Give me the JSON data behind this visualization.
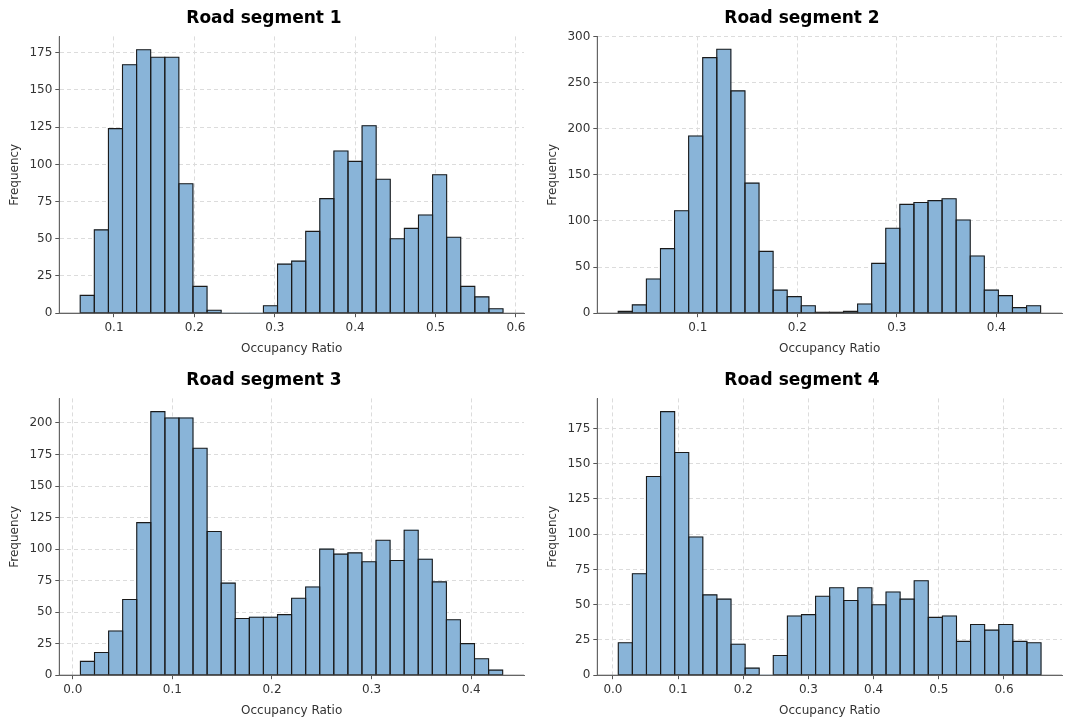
{
  "chart_data": [
    {
      "type": "histogram",
      "title": "Road segment 1",
      "xlabel": "Occupancy Ratio",
      "ylabel": "Frequency",
      "color": "#89b4d8",
      "grid": true,
      "bins": [
        0.058,
        0.0755,
        0.0931,
        0.1106,
        0.1281,
        0.1457,
        0.1632,
        0.1807,
        0.1982,
        0.2158,
        0.2333,
        0.2508,
        0.2684,
        0.2859,
        0.3034,
        0.321,
        0.3385,
        0.356,
        0.3735,
        0.3911,
        0.4086,
        0.4261,
        0.4437,
        0.4612,
        0.4787,
        0.4963,
        0.5138,
        0.5313,
        0.5488,
        0.5664,
        0.5839
      ],
      "values": [
        12,
        56,
        124,
        167,
        177,
        172,
        172,
        87,
        18,
        2,
        0,
        0,
        0,
        5,
        33,
        35,
        55,
        77,
        109,
        102,
        126,
        90,
        50,
        57,
        66,
        93,
        51,
        18,
        11,
        3
      ],
      "xlim": [
        0.032,
        0.61
      ],
      "xticks": [
        0.1,
        0.2,
        0.3,
        0.4,
        0.5,
        0.6
      ],
      "ylim": [
        0,
        186
      ],
      "yticks": [
        0,
        25,
        50,
        75,
        100,
        125,
        150,
        175
      ]
    },
    {
      "type": "histogram",
      "title": "Road segment 2",
      "xlabel": "Occupancy Ratio",
      "ylabel": "Frequency",
      "color": "#89b4d8",
      "grid": true,
      "bins": [
        0.02,
        0.0342,
        0.0483,
        0.0625,
        0.0766,
        0.0908,
        0.1049,
        0.1191,
        0.1332,
        0.1474,
        0.1615,
        0.1757,
        0.1898,
        0.204,
        0.2181,
        0.2323,
        0.2464,
        0.2606,
        0.2747,
        0.2889,
        0.303,
        0.3172,
        0.3313,
        0.3455,
        0.3596,
        0.3738,
        0.3879,
        0.4021,
        0.4162,
        0.4304,
        0.4445
      ],
      "values": [
        2,
        9,
        37,
        70,
        111,
        192,
        277,
        286,
        241,
        141,
        67,
        25,
        18,
        8,
        1,
        1,
        2,
        10,
        54,
        92,
        118,
        120,
        122,
        124,
        101,
        62,
        25,
        19,
        6,
        8
      ],
      "xlim": [
        -0.001,
        0.466
      ],
      "xticks": [
        0.1,
        0.2,
        0.3,
        0.4
      ],
      "ylim": [
        0,
        300
      ],
      "yticks": [
        0,
        50,
        100,
        150,
        200,
        250,
        300
      ]
    },
    {
      "type": "histogram",
      "title": "Road segment 3",
      "xlabel": "Occupancy Ratio",
      "ylabel": "Frequency",
      "color": "#89b4d8",
      "grid": true,
      "bins": [
        0.0077,
        0.0218,
        0.036,
        0.0501,
        0.0642,
        0.0784,
        0.0925,
        0.1066,
        0.1207,
        0.1349,
        0.149,
        0.1631,
        0.1773,
        0.1914,
        0.2055,
        0.2197,
        0.2338,
        0.2479,
        0.262,
        0.2762,
        0.2903,
        0.3044,
        0.3186,
        0.3327,
        0.3468,
        0.361,
        0.3751,
        0.3892,
        0.4033,
        0.4175,
        0.4316
      ],
      "values": [
        11,
        18,
        35,
        60,
        121,
        209,
        204,
        204,
        180,
        114,
        73,
        45,
        46,
        46,
        48,
        61,
        70,
        100,
        96,
        97,
        90,
        107,
        91,
        115,
        92,
        74,
        44,
        25,
        13,
        4
      ],
      "xlim": [
        -0.0135,
        0.453
      ],
      "xticks": [
        {
          "value": 0,
          "label": "0.0"
        },
        0.1,
        0.2,
        0.3,
        0.4
      ],
      "ylim": [
        0,
        219.5
      ],
      "yticks": [
        0,
        25,
        50,
        75,
        100,
        125,
        150,
        175,
        200
      ]
    },
    {
      "type": "histogram",
      "title": "Road segment 4",
      "xlabel": "Occupancy Ratio",
      "ylabel": "Frequency",
      "color": "#89b4d8",
      "grid": true,
      "bins": [
        0.0082,
        0.0298,
        0.0514,
        0.0731,
        0.0947,
        0.1163,
        0.1379,
        0.1595,
        0.1812,
        0.2028,
        0.2244,
        0.246,
        0.2676,
        0.2893,
        0.3109,
        0.3325,
        0.3541,
        0.3757,
        0.3974,
        0.419,
        0.4406,
        0.4622,
        0.4838,
        0.5055,
        0.5271,
        0.5487,
        0.5703,
        0.5919,
        0.6136,
        0.6352,
        0.6568
      ],
      "values": [
        23,
        72,
        141,
        187,
        158,
        98,
        57,
        54,
        22,
        5,
        0,
        14,
        42,
        43,
        56,
        62,
        53,
        62,
        50,
        59,
        54,
        67,
        41,
        42,
        24,
        36,
        32,
        36,
        24,
        23
      ],
      "xlim": [
        -0.024,
        0.689
      ],
      "xticks": [
        {
          "value": 0,
          "label": "0.0"
        },
        0.1,
        0.2,
        0.3,
        0.4,
        0.5,
        0.6
      ],
      "ylim": [
        0,
        196.35
      ],
      "yticks": [
        0,
        25,
        50,
        75,
        100,
        125,
        150,
        175
      ]
    }
  ]
}
